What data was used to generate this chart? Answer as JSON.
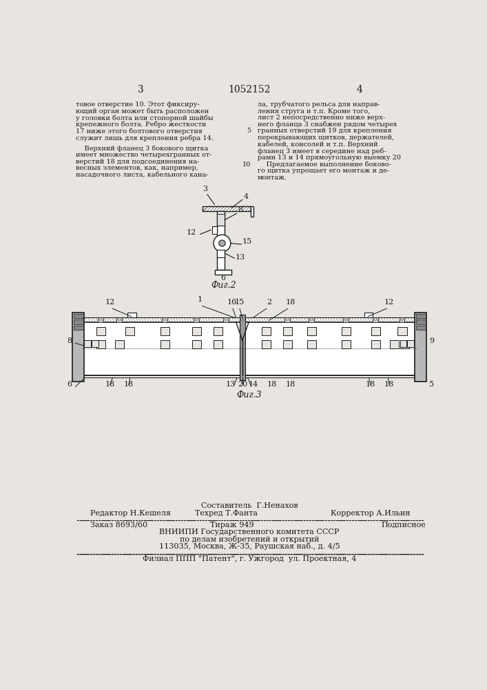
{
  "page_number_left": "3",
  "page_number_center": "1052152",
  "page_number_right": "4",
  "col1_text": "товое отверстие 10. Этот фиксиру-\nющий орган может быть расположен\nу головки болта или стопорной шайбы\nкрепежного болта. Ребро жесткости\n17 ниже этого болтового отверстия\nслужит лишь для крепления ребра 14.\n\n    Верхний фланец 3 бокового щитка\nимеет множество четырехгранных от-\nверстий 18 для подсоединения на-\nвесных элементов, как, например,\nнасадочного листа, кабельного кана-",
  "col2_text": "ла, трубчатого рельса для направ-\nления струга и т.п. Кроме того,\nлист 2 непосредственно ниже верх-\nнего фланца 3 снабжен рядом четырех\nгранных отверстий 19 для крепления\nперекрывающих щитков, держателей,\nкабелей, консолей и т.п. Верхний\nфланец 3 имеет в середине над реб-\nрами 13 и 14 прямоугольную выемку 20\n    Предлагаемое выполнение боково-\nго щитка упрощает его монтаж и де-\nмонтаж.",
  "fig2_caption": "Фиг.2",
  "fig3_caption": "Фиг.3",
  "footer_compositor": "Составитель  Г.Ненахов",
  "footer_editor": "Редактор Н.Кешеля",
  "footer_techred": "Техред Т.Фанта",
  "footer_corrector": "Корректор А.Ильин",
  "footer_order": "Заказ 8693/60",
  "footer_tirazh": "Тираж 949",
  "footer_podpisnoe": "Подписное",
  "footer_vnipi1": "ВНИИПИ Государственного комитета СССР",
  "footer_vnipi2": "по делам изобретений и открытий",
  "footer_vnipi3": "113035, Москва, Ж-35, Раушская наб., д. 4/5",
  "footer_filial": "Филиал ППП \"Патент\", г. Ужгород  ул. Проектная, 4",
  "bg_color": "#e8e5e0",
  "text_color": "#1a1a1a"
}
